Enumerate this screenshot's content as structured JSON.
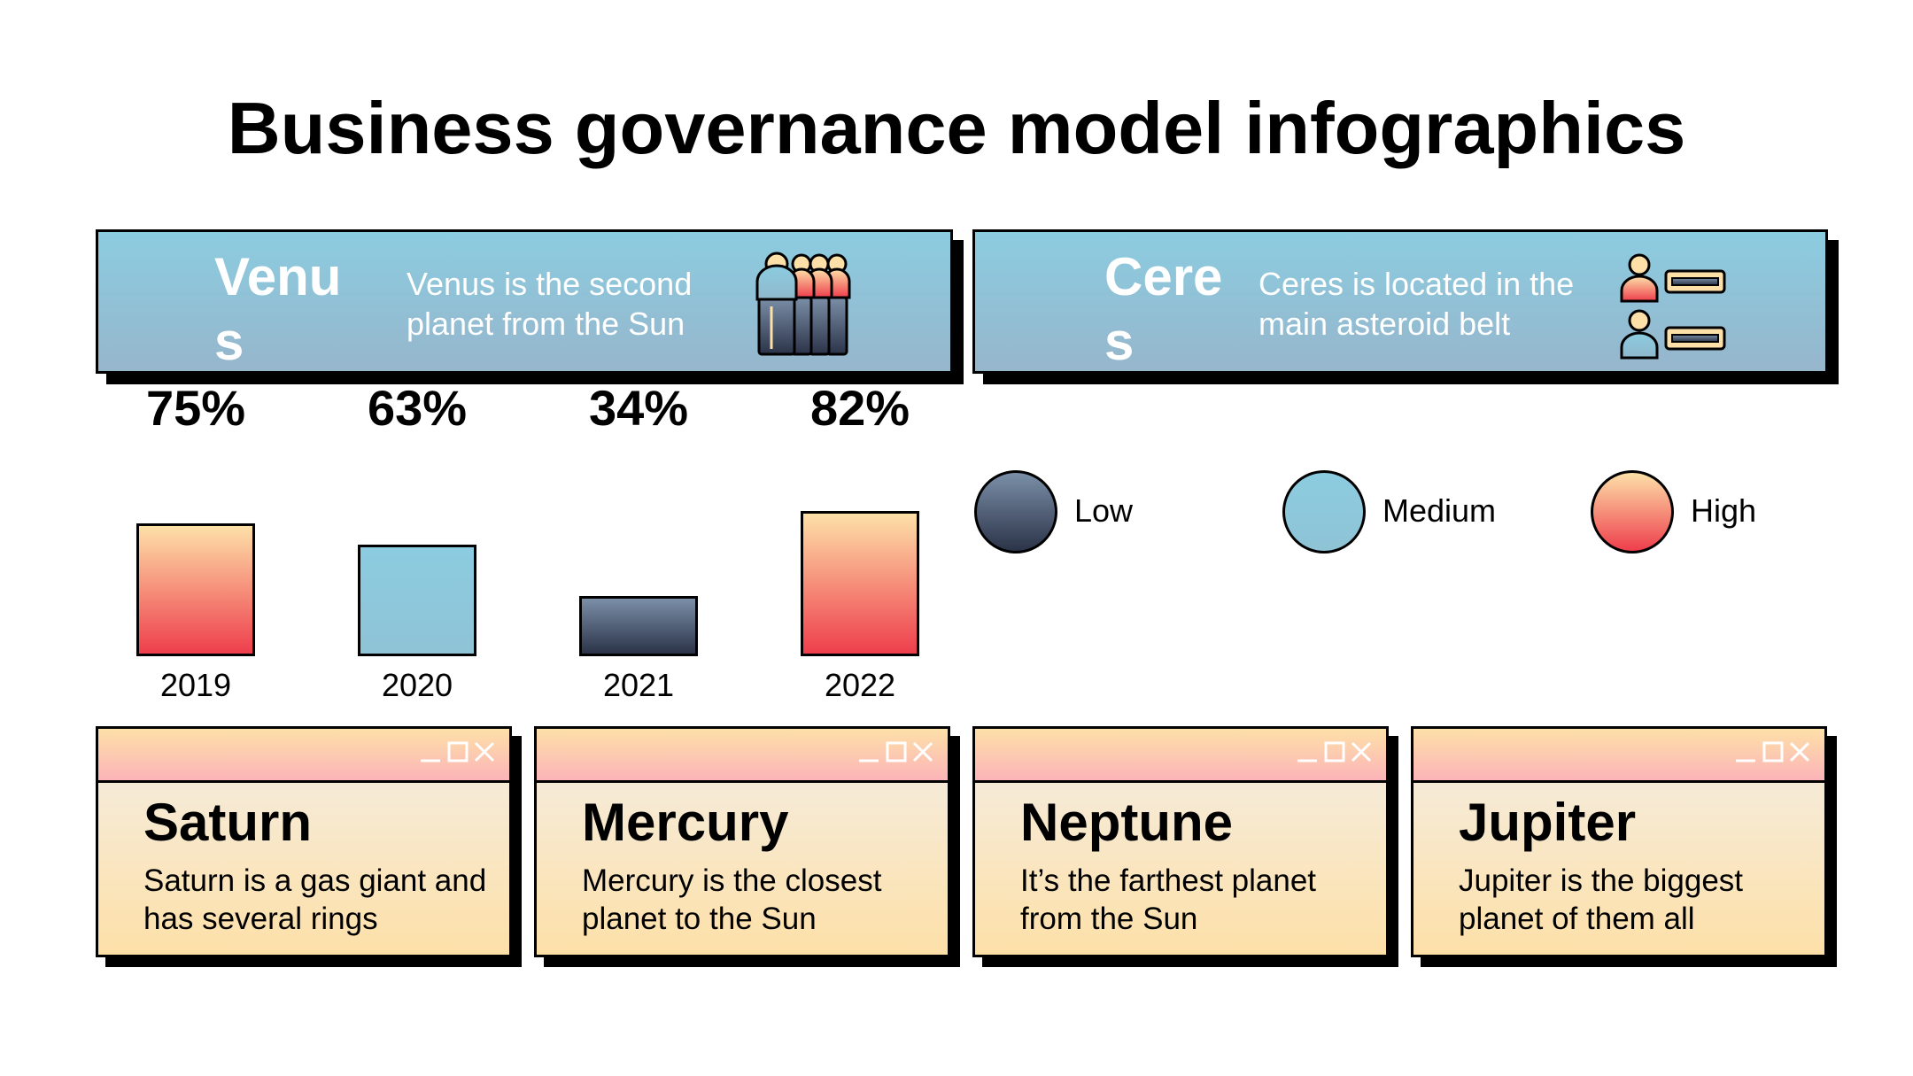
{
  "title": "Business governance model infographics",
  "panels": [
    {
      "name": "Venus",
      "description": "Venus is the second planet from the Sun",
      "icon": "group-of-people-icon"
    },
    {
      "name": "Ceres",
      "description": "Ceres is located in the main asteroid belt",
      "icon": "user-list-icon"
    }
  ],
  "chart_data": {
    "type": "bar",
    "categories": [
      "2019",
      "2020",
      "2021",
      "2022"
    ],
    "values": [
      75,
      63,
      34,
      82
    ],
    "value_labels": [
      "75%",
      "63%",
      "34%",
      "82%"
    ],
    "levels": [
      "High",
      "Medium",
      "Low",
      "High"
    ],
    "unit": "%"
  },
  "legend": [
    {
      "label": "Low",
      "gradient": [
        "#7b8fa8",
        "#2b3348"
      ]
    },
    {
      "label": "Medium",
      "gradient": [
        "#8ccce0",
        "#8fc3d6"
      ]
    },
    {
      "label": "High",
      "gradient": [
        "#fde0a8",
        "#ee3e4c"
      ]
    }
  ],
  "cards": [
    {
      "title": "Saturn",
      "text": "Saturn is a gas giant and has several rings"
    },
    {
      "title": "Mercury",
      "text": "Mercury is the closest planet to the Sun"
    },
    {
      "title": "Neptune",
      "text": "It’s the farthest planet from the Sun"
    },
    {
      "title": "Jupiter",
      "text": "Jupiter is the biggest planet of them all"
    }
  ],
  "colors": {
    "panel_top": "#8ccce0",
    "panel_bottom": "#96b6cc",
    "high_top": "#fde0a8",
    "high_bottom": "#ee3e4c",
    "low_top": "#7b8fa8",
    "low_bottom": "#2b3348",
    "card_body_bottom": "#fde0a8",
    "card_bar_bottom": "#fcb4b8"
  }
}
